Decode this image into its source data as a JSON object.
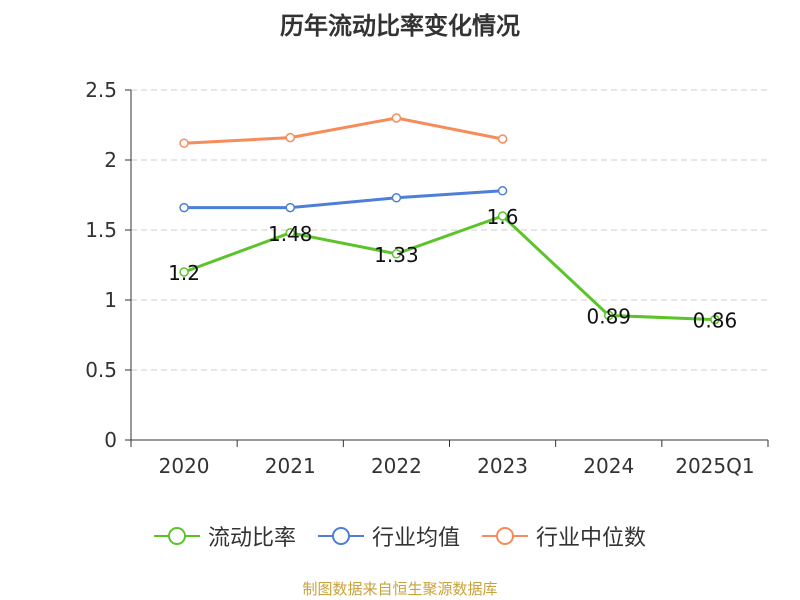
{
  "chart_data": {
    "type": "line",
    "title": "历年流动比率变化情况",
    "categories": [
      "2020",
      "2021",
      "2022",
      "2023",
      "2024",
      "2025Q1"
    ],
    "ylim": [
      0,
      2.5
    ],
    "yticks": [
      "0",
      "0.5",
      "1",
      "1.5",
      "2",
      "2.5"
    ],
    "ytick_values": [
      0,
      0.5,
      1,
      1.5,
      2,
      2.5
    ],
    "grid": true,
    "legend_position": "bottom",
    "series": [
      {
        "name": "流动比率",
        "color": "#5cc42a",
        "values": [
          1.2,
          1.48,
          1.33,
          1.6,
          0.89,
          0.86
        ],
        "labels": [
          "1.2",
          "1.48",
          "1.33",
          "1.6",
          "0.89",
          "0.86"
        ]
      },
      {
        "name": "行业均值",
        "color": "#4d7fd6",
        "values": [
          1.66,
          1.66,
          1.73,
          1.78,
          null,
          null
        ]
      },
      {
        "name": "行业中位数",
        "color": "#f58c5a",
        "values": [
          2.12,
          2.16,
          2.3,
          2.15,
          null,
          null
        ]
      }
    ]
  },
  "source": "制图数据来自恒生聚源数据库"
}
